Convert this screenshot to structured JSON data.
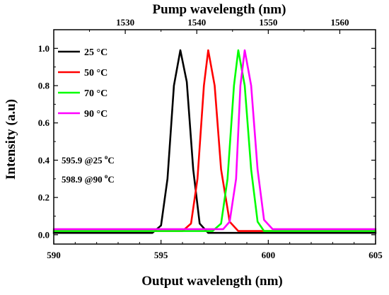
{
  "chart_data": {
    "type": "line",
    "title": "",
    "xlabel": "Output wavelength (nm)",
    "x2label": "Pump wavelength (nm)",
    "ylabel": "Intensity (a.u)",
    "xlim": [
      590,
      605
    ],
    "x2lim": [
      1520,
      1565
    ],
    "ylim": [
      -0.05,
      1.1
    ],
    "xticks": [
      "590",
      "595",
      "600",
      "605"
    ],
    "x2ticks": [
      "1530",
      "1540",
      "1550",
      "1560"
    ],
    "yticks": [
      "0.0",
      "0.2",
      "0.4",
      "0.6",
      "0.8",
      "1.0"
    ],
    "grid": false,
    "legend_position": "top-left",
    "series": [
      {
        "name": "25 °C",
        "color": "#000000",
        "x": [
          590,
          594.6,
          595.0,
          595.3,
          595.6,
          595.9,
          596.2,
          596.5,
          596.8,
          597.2,
          605
        ],
        "y": [
          0.01,
          0.01,
          0.05,
          0.3,
          0.8,
          0.99,
          0.82,
          0.35,
          0.06,
          0.01,
          0.01
        ]
      },
      {
        "name": "50 °C",
        "color": "#ff0000",
        "x": [
          590,
          596.0,
          596.4,
          596.7,
          597.0,
          597.2,
          597.5,
          597.8,
          598.2,
          598.6,
          605
        ],
        "y": [
          0.02,
          0.02,
          0.06,
          0.3,
          0.8,
          0.99,
          0.8,
          0.35,
          0.07,
          0.02,
          0.02
        ]
      },
      {
        "name": "70 °C",
        "color": "#00ff00",
        "x": [
          590,
          597.4,
          597.8,
          598.1,
          598.4,
          598.6,
          598.9,
          599.2,
          599.5,
          599.8,
          605
        ],
        "y": [
          0.02,
          0.02,
          0.06,
          0.3,
          0.8,
          0.99,
          0.8,
          0.35,
          0.07,
          0.02,
          0.02
        ]
      },
      {
        "name": "90 °C",
        "color": "#ff00ff",
        "x": [
          590,
          597.9,
          598.2,
          598.5,
          598.7,
          598.9,
          599.2,
          599.5,
          599.8,
          600.2,
          605
        ],
        "y": [
          0.03,
          0.03,
          0.07,
          0.3,
          0.8,
          0.99,
          0.8,
          0.35,
          0.08,
          0.03,
          0.03
        ]
      }
    ],
    "annotations": [
      {
        "prefix": "595.9 @25 ",
        "sup": "o",
        "suffix": "C"
      },
      {
        "prefix": "598.9 @90 ",
        "sup": "o",
        "suffix": "C"
      }
    ]
  }
}
